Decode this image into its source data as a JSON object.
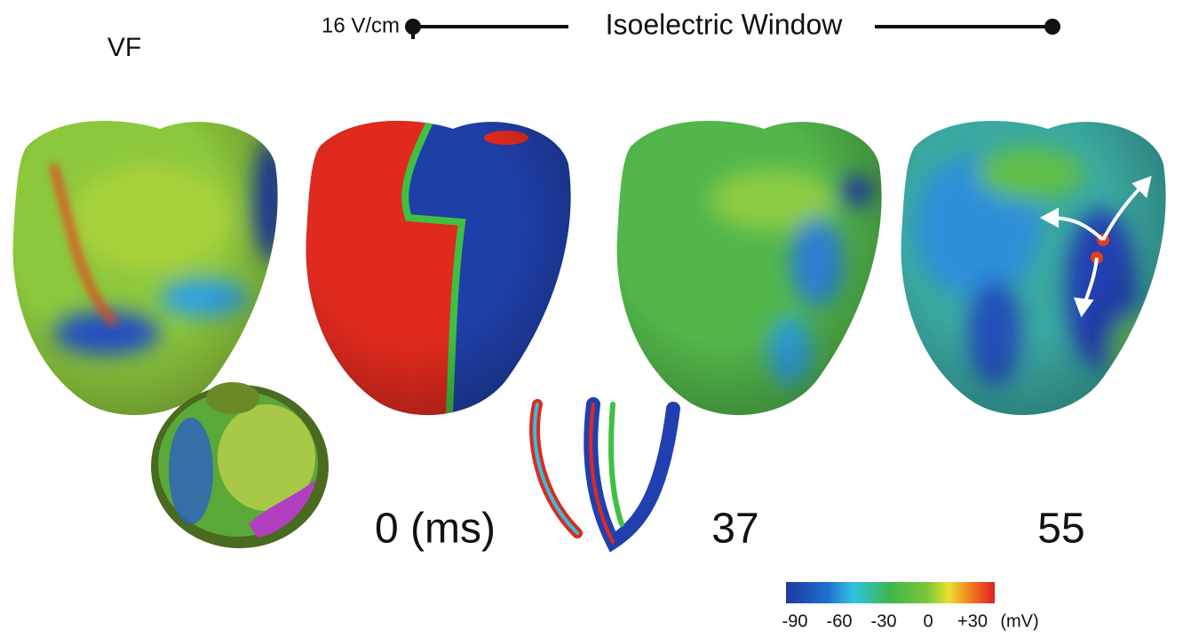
{
  "figure": {
    "panel_label": "VF",
    "field_strength": "16 V/cm",
    "window_label": "Isoelectric Window",
    "time_labels": [
      "0 (ms)",
      "37",
      "55"
    ],
    "colorbar": {
      "ticks": [
        "-90",
        "-60",
        "-30",
        "0",
        "+30"
      ],
      "unit": "(mV)"
    }
  }
}
